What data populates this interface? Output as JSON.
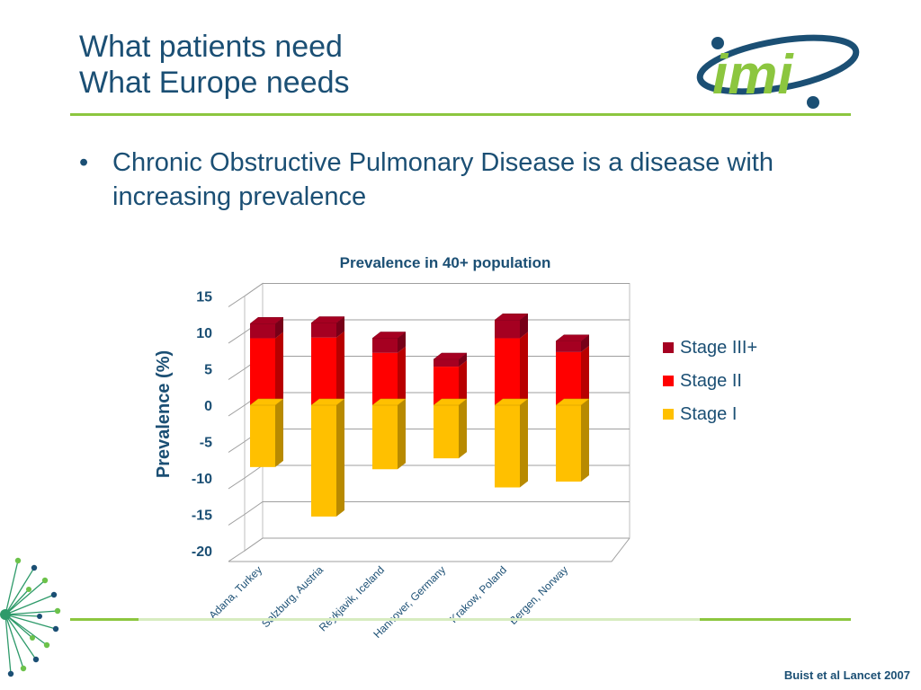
{
  "slide": {
    "title_lines": [
      "What patients need",
      "What Europe needs"
    ],
    "bullet": "Chronic Obstructive Pulmonary Disease is a disease with increasing prevalence",
    "citation": "Buist et al Lancet 2007",
    "logo_text": "imi"
  },
  "colors": {
    "title": "#1b4f74",
    "accent_green": "#8cc63f",
    "stage1": "#ffc000",
    "stage2": "#ff0000",
    "stage3": "#a50021"
  },
  "chart_data": {
    "type": "bar",
    "stacked": true,
    "three_d": true,
    "title": "Prevalence in 40+ population",
    "ylabel": "Prevalence (%)",
    "xlabel": "",
    "ylim": [
      -20,
      15
    ],
    "yticks": [
      "15",
      "10",
      "5",
      "0",
      "-5",
      "-10",
      "-15",
      "-20"
    ],
    "categories": [
      "Adana, Turkey",
      "Salzburg, Austria",
      "Reykjavik, Iceland",
      "Hannover, Germany",
      "Krakow, Poland",
      "Bergen, Norway"
    ],
    "series": [
      {
        "name": "Stage III+",
        "values": [
          2.0,
          2.0,
          2.0,
          1.0,
          2.5,
          1.5
        ],
        "color": "#a50021"
      },
      {
        "name": "Stage II",
        "values": [
          9.2,
          9.3,
          7.2,
          5.3,
          9.2,
          7.3
        ],
        "color": "#ff0000"
      },
      {
        "name": "Stage I",
        "values": [
          -8.5,
          -15.3,
          -8.8,
          -7.3,
          -11.3,
          -10.5
        ],
        "color": "#ffc000"
      }
    ],
    "legend_position": "right",
    "grid": true
  }
}
